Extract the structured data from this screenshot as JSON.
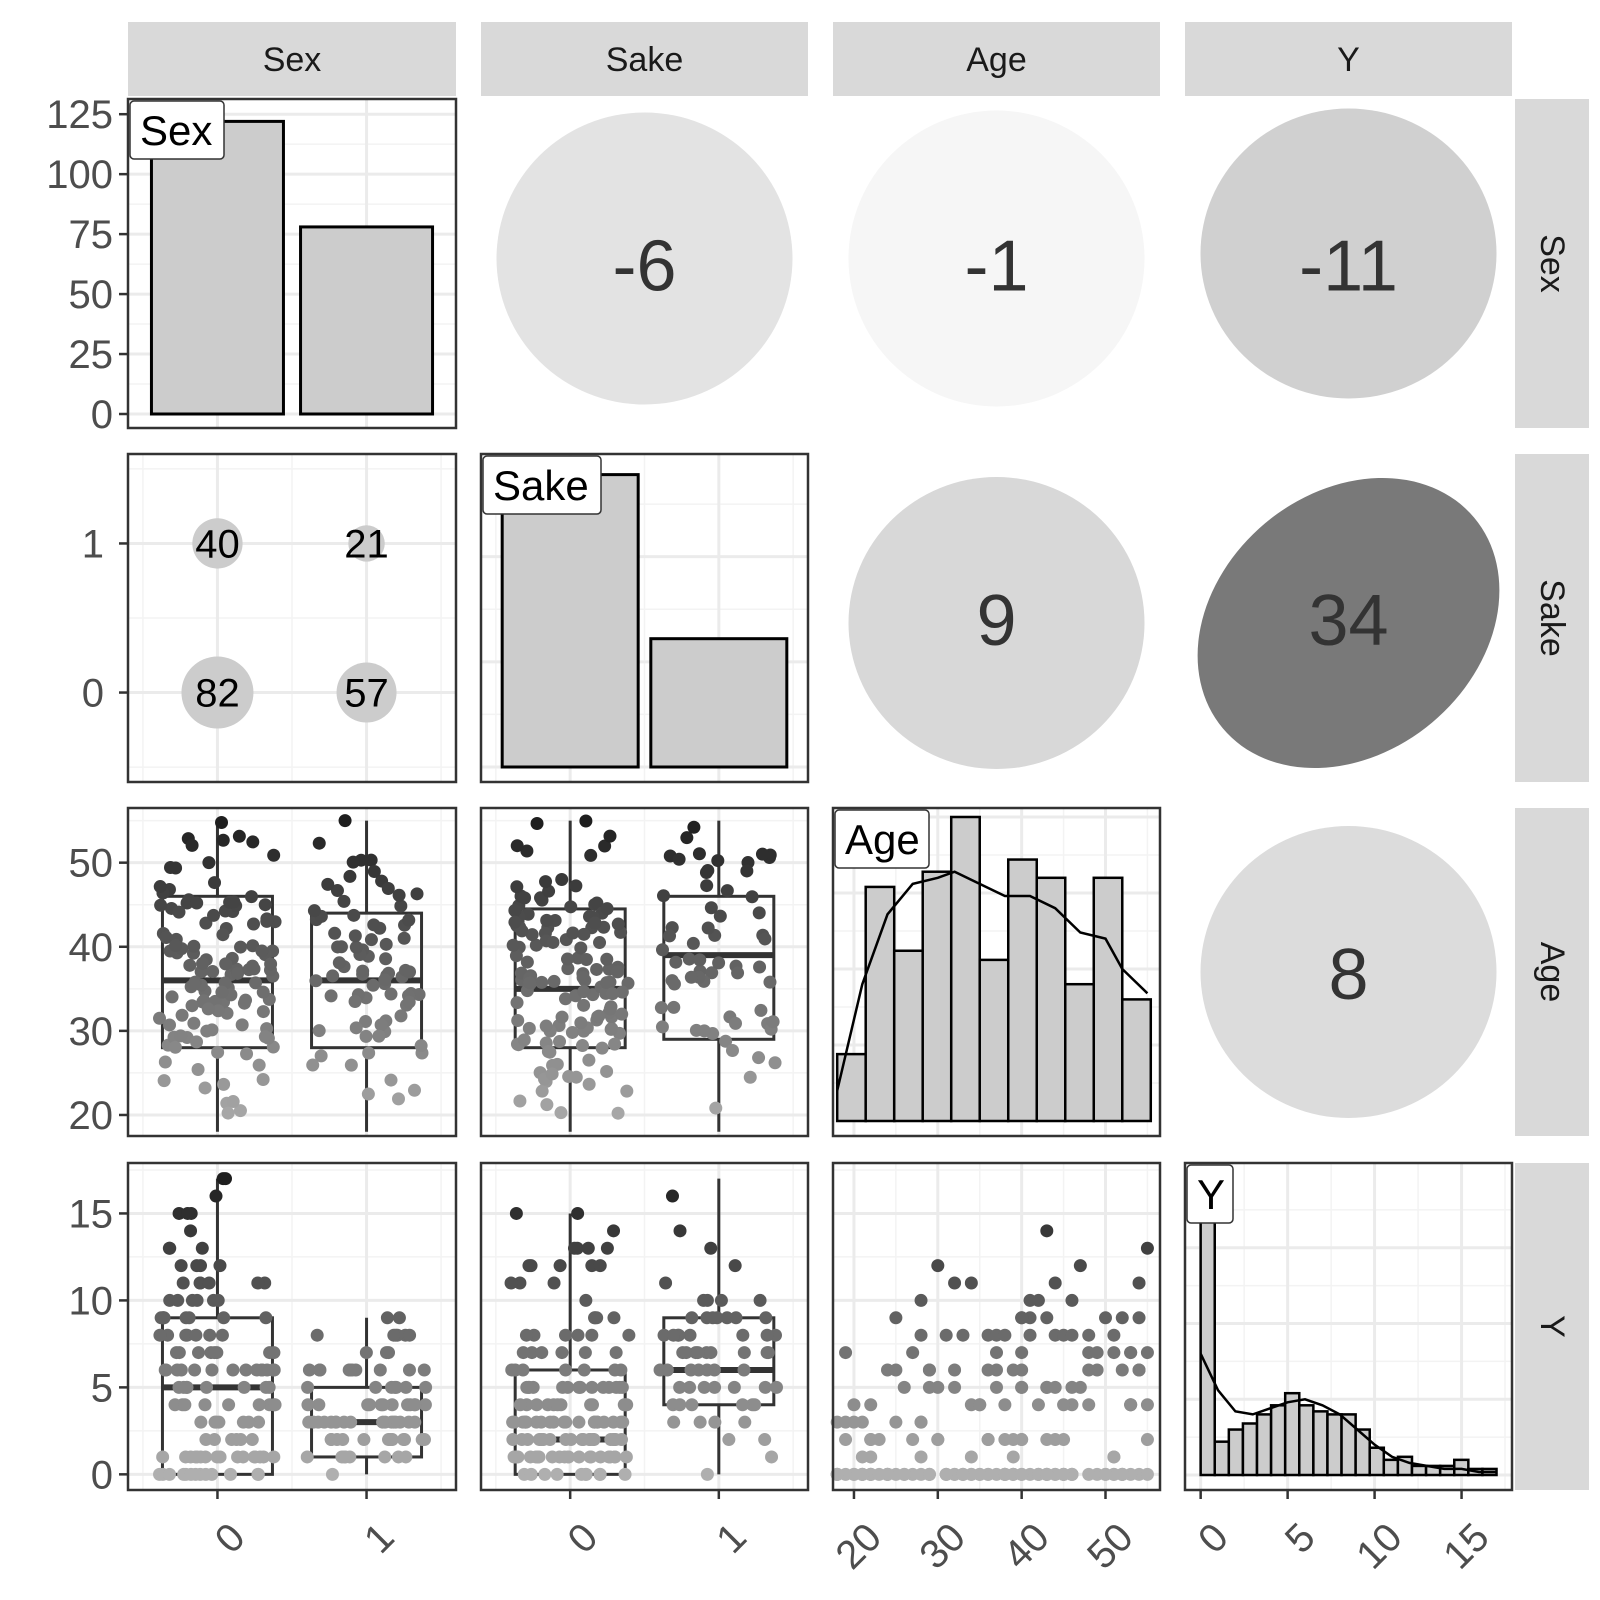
{
  "chart_data": {
    "type": "pairs",
    "variables": [
      "Sex",
      "Sake",
      "Age",
      "Y"
    ],
    "strip_labels": {
      "top": [
        "Sex",
        "Sake",
        "Age",
        "Y"
      ],
      "right": [
        "Sex",
        "Sake",
        "Age",
        "Y"
      ]
    },
    "diag_labels": [
      "Sex",
      "Sake",
      "Age",
      "Y"
    ],
    "axes": {
      "sex_counts": {
        "ticks": [
          "0",
          "25",
          "50",
          "75",
          "100",
          "125"
        ],
        "ylim": [
          0,
          128
        ]
      },
      "sake_levels": {
        "ticks": [
          "0",
          "1"
        ]
      },
      "age": {
        "ticks": [
          "20",
          "30",
          "40",
          "50"
        ],
        "lim": [
          17.5,
          56.5
        ]
      },
      "y": {
        "ticks": [
          "0",
          "5",
          "10",
          "15"
        ],
        "lim": [
          -0.9,
          17.9
        ]
      },
      "x_bottom": [
        [
          "0",
          "1"
        ],
        [
          "0",
          "1"
        ],
        [
          "20",
          "30",
          "40",
          "50"
        ],
        [
          "0",
          "5",
          "10",
          "15"
        ]
      ]
    },
    "bar_sex": {
      "categories": [
        "0",
        "1"
      ],
      "values": [
        122,
        78
      ]
    },
    "bar_sake": {
      "categories": [
        "0",
        "1"
      ],
      "values": [
        139,
        61
      ]
    },
    "correlations": [
      {
        "row": "Sex",
        "col": "Sake",
        "value": -6,
        "label": "-6"
      },
      {
        "row": "Sex",
        "col": "Age",
        "value": -1,
        "label": "-1"
      },
      {
        "row": "Sex",
        "col": "Y",
        "value": -11,
        "label": "-11"
      },
      {
        "row": "Sake",
        "col": "Age",
        "value": 9,
        "label": "9"
      },
      {
        "row": "Sake",
        "col": "Y",
        "value": 34,
        "label": "34"
      },
      {
        "row": "Age",
        "col": "Y",
        "value": 8,
        "label": "8"
      }
    ],
    "counts_sex_sake": [
      {
        "sex": 0,
        "sake": 1,
        "n": 40,
        "label": "40"
      },
      {
        "sex": 1,
        "sake": 1,
        "n": 21,
        "label": "21"
      },
      {
        "sex": 0,
        "sake": 0,
        "n": 82,
        "label": "82"
      },
      {
        "sex": 1,
        "sake": 0,
        "n": 57,
        "label": "57"
      }
    ],
    "box_age_by_sex": [
      {
        "group": "0",
        "min": 18,
        "q1": 28,
        "median": 36,
        "q3": 46,
        "max": 55
      },
      {
        "group": "1",
        "min": 18,
        "q1": 28,
        "median": 36,
        "q3": 44,
        "max": 55
      }
    ],
    "box_age_by_sake": [
      {
        "group": "0",
        "min": 18,
        "q1": 28,
        "median": 35,
        "q3": 44.5,
        "max": 55
      },
      {
        "group": "1",
        "min": 18,
        "q1": 29,
        "median": 39,
        "q3": 46,
        "max": 55
      }
    ],
    "box_y_by_sex": [
      {
        "group": "0",
        "min": 0,
        "q1": 0,
        "median": 5,
        "q3": 9,
        "max": 17
      },
      {
        "group": "1",
        "min": 0,
        "q1": 1,
        "median": 3,
        "q3": 5,
        "max": 9
      }
    ],
    "box_y_by_sake": [
      {
        "group": "0",
        "min": 0,
        "q1": 0,
        "median": 2,
        "q3": 6,
        "max": 15
      },
      {
        "group": "1",
        "min": 0,
        "q1": 4,
        "median": 6,
        "q3": 9,
        "max": 17
      }
    ],
    "hist_age": {
      "bin_edges": [
        18,
        21.4,
        24.8,
        28.2,
        31.6,
        35,
        38.4,
        41.8,
        45.2,
        48.6,
        52,
        55.4
      ],
      "heights": [
        0.22,
        0.77,
        0.56,
        0.82,
        1.0,
        0.53,
        0.86,
        0.8,
        0.45,
        0.8,
        0.4
      ],
      "density_curve": [
        [
          18,
          0.1
        ],
        [
          21,
          0.45
        ],
        [
          24,
          0.68
        ],
        [
          27,
          0.78
        ],
        [
          30,
          0.8
        ],
        [
          32,
          0.82
        ],
        [
          35,
          0.78
        ],
        [
          38,
          0.74
        ],
        [
          41,
          0.74
        ],
        [
          44,
          0.7
        ],
        [
          47,
          0.62
        ],
        [
          50,
          0.6
        ],
        [
          52,
          0.5
        ],
        [
          55,
          0.42
        ]
      ]
    },
    "hist_y": {
      "bin_edges": [
        0,
        0.81,
        1.62,
        2.43,
        3.24,
        4.05,
        4.86,
        5.67,
        6.48,
        7.29,
        8.1,
        8.91,
        9.72,
        10.53,
        11.34,
        12.15,
        12.96,
        13.77,
        14.58,
        15.39,
        16.2,
        17.01
      ],
      "heights": [
        1.0,
        0.11,
        0.15,
        0.17,
        0.2,
        0.23,
        0.27,
        0.23,
        0.21,
        0.2,
        0.2,
        0.15,
        0.09,
        0.05,
        0.06,
        0.03,
        0.03,
        0.03,
        0.05,
        0.02,
        0.02
      ],
      "density_curve": [
        [
          0,
          0.4
        ],
        [
          1,
          0.28
        ],
        [
          2,
          0.21
        ],
        [
          3,
          0.2
        ],
        [
          4,
          0.22
        ],
        [
          5,
          0.24
        ],
        [
          6,
          0.25
        ],
        [
          7,
          0.23
        ],
        [
          8,
          0.2
        ],
        [
          9,
          0.15
        ],
        [
          10,
          0.1
        ],
        [
          11,
          0.06
        ],
        [
          12,
          0.04
        ],
        [
          13,
          0.03
        ],
        [
          14,
          0.02
        ],
        [
          15,
          0.02
        ],
        [
          16,
          0.01
        ],
        [
          17,
          0.01
        ]
      ]
    }
  }
}
